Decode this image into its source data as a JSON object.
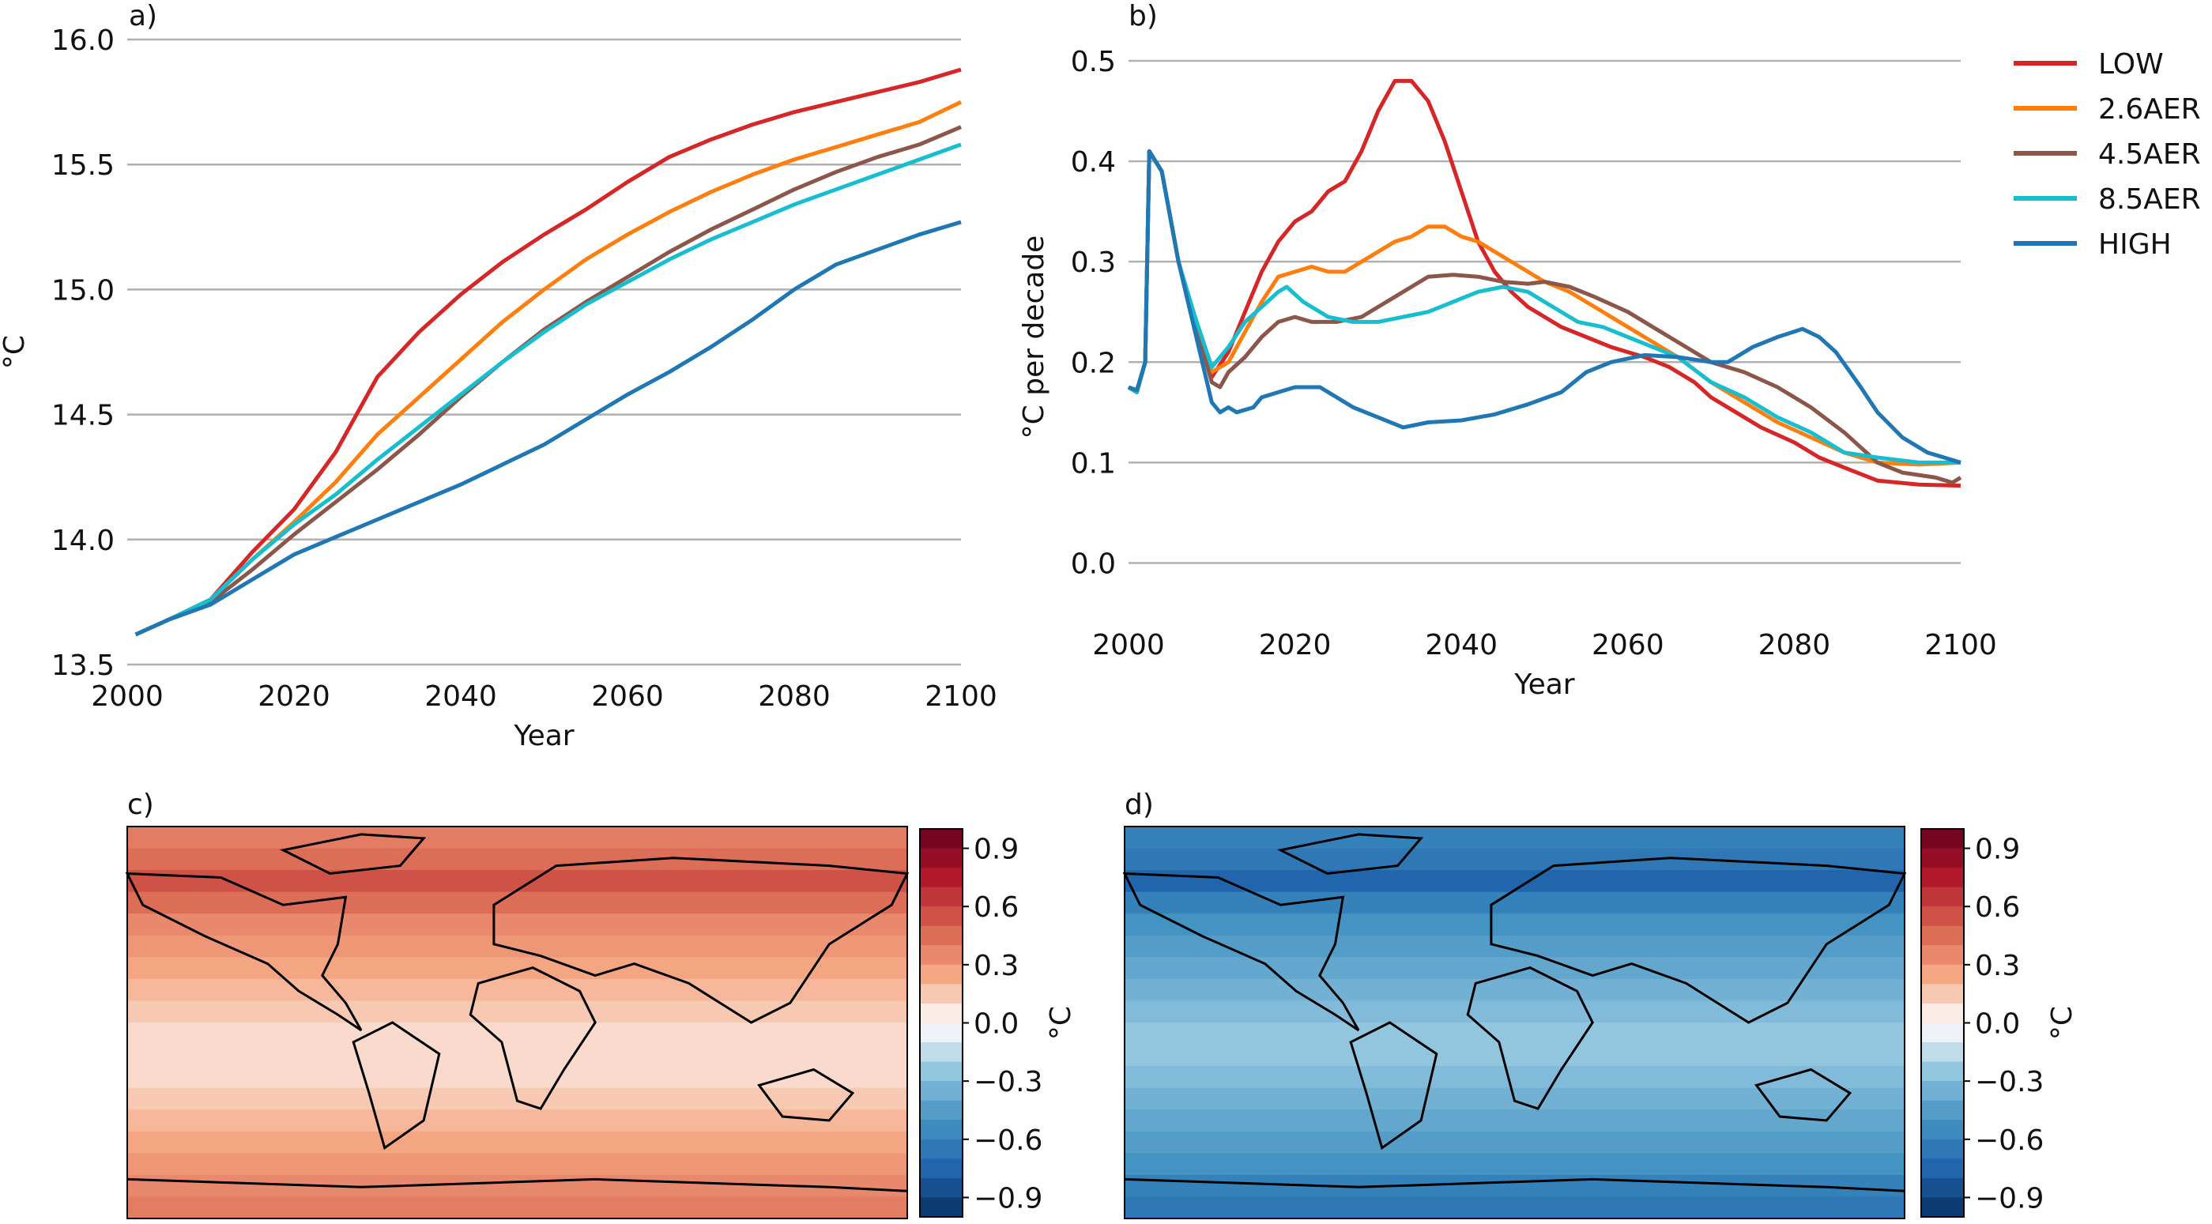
{
  "chart_data": [
    {
      "type": "line",
      "panel_label": "a)",
      "xlabel": "Year",
      "ylabel": "°C",
      "xlim": [
        2000,
        2100
      ],
      "ylim": [
        13.5,
        16.0
      ],
      "xticks": [
        "2000",
        "2020",
        "2040",
        "2060",
        "2080",
        "2100"
      ],
      "yticks": [
        "13.5",
        "14.0",
        "14.5",
        "15.0",
        "15.5",
        "16.0"
      ],
      "grid": "horizontal",
      "x": [
        2001,
        2005,
        2010,
        2015,
        2020,
        2025,
        2030,
        2035,
        2040,
        2045,
        2050,
        2055,
        2060,
        2065,
        2070,
        2075,
        2080,
        2085,
        2090,
        2095,
        2100
      ],
      "series": [
        {
          "name": "LOW",
          "color": "#d62728",
          "values": [
            13.62,
            13.68,
            13.76,
            13.95,
            14.12,
            14.35,
            14.65,
            14.83,
            14.98,
            15.11,
            15.22,
            15.32,
            15.43,
            15.53,
            15.6,
            15.66,
            15.71,
            15.75,
            15.79,
            15.83,
            15.88
          ]
        },
        {
          "name": "2.6AER",
          "color": "#ff7f0e",
          "values": [
            13.62,
            13.68,
            13.76,
            13.92,
            14.07,
            14.23,
            14.42,
            14.57,
            14.72,
            14.87,
            15.0,
            15.12,
            15.22,
            15.31,
            15.39,
            15.46,
            15.52,
            15.57,
            15.62,
            15.67,
            15.75
          ]
        },
        {
          "name": "4.5AER",
          "color": "#8c564b",
          "values": [
            13.62,
            13.68,
            13.75,
            13.88,
            14.02,
            14.15,
            14.28,
            14.42,
            14.57,
            14.71,
            14.84,
            14.95,
            15.05,
            15.15,
            15.24,
            15.32,
            15.4,
            15.47,
            15.53,
            15.58,
            15.65
          ]
        },
        {
          "name": "8.5AER",
          "color": "#17becf",
          "values": [
            13.62,
            13.68,
            13.76,
            13.92,
            14.06,
            14.18,
            14.32,
            14.45,
            14.58,
            14.71,
            14.83,
            14.94,
            15.03,
            15.12,
            15.2,
            15.27,
            15.34,
            15.4,
            15.46,
            15.52,
            15.58
          ]
        },
        {
          "name": "HIGH",
          "color": "#1f77b4",
          "values": [
            13.62,
            13.68,
            13.74,
            13.84,
            13.94,
            14.01,
            14.08,
            14.15,
            14.22,
            14.3,
            14.38,
            14.48,
            14.58,
            14.67,
            14.77,
            14.88,
            15.0,
            15.1,
            15.16,
            15.22,
            15.27
          ]
        }
      ]
    },
    {
      "type": "line",
      "panel_label": "b)",
      "xlabel": "Year",
      "ylabel": "°C per decade",
      "xlim": [
        2000,
        2100
      ],
      "ylim": [
        -0.05,
        0.5
      ],
      "xticks": [
        "2000",
        "2020",
        "2040",
        "2060",
        "2080",
        "2100"
      ],
      "yticks": [
        "0.0",
        "0.1",
        "0.2",
        "0.3",
        "0.4",
        "0.5"
      ],
      "grid": "horizontal",
      "legend": "right",
      "series": [
        {
          "name": "LOW",
          "color": "#d62728",
          "points": [
            [
              2000,
              0.175
            ],
            [
              2001,
              0.17
            ],
            [
              2002,
              0.2
            ],
            [
              2002.5,
              0.41
            ],
            [
              2004,
              0.39
            ],
            [
              2006,
              0.3
            ],
            [
              2008,
              0.24
            ],
            [
              2010,
              0.185
            ],
            [
              2012,
              0.21
            ],
            [
              2014,
              0.25
            ],
            [
              2016,
              0.29
            ],
            [
              2018,
              0.32
            ],
            [
              2020,
              0.34
            ],
            [
              2022,
              0.35
            ],
            [
              2024,
              0.37
            ],
            [
              2026,
              0.38
            ],
            [
              2028,
              0.41
            ],
            [
              2030,
              0.45
            ],
            [
              2032,
              0.48
            ],
            [
              2034,
              0.48
            ],
            [
              2036,
              0.46
            ],
            [
              2038,
              0.42
            ],
            [
              2040,
              0.37
            ],
            [
              2042,
              0.32
            ],
            [
              2044,
              0.29
            ],
            [
              2046,
              0.27
            ],
            [
              2048,
              0.255
            ],
            [
              2050,
              0.245
            ],
            [
              2052,
              0.235
            ],
            [
              2055,
              0.225
            ],
            [
              2058,
              0.215
            ],
            [
              2060,
              0.21
            ],
            [
              2062,
              0.205
            ],
            [
              2065,
              0.195
            ],
            [
              2068,
              0.18
            ],
            [
              2070,
              0.165
            ],
            [
              2073,
              0.15
            ],
            [
              2076,
              0.135
            ],
            [
              2080,
              0.12
            ],
            [
              2083,
              0.105
            ],
            [
              2086,
              0.095
            ],
            [
              2090,
              0.082
            ],
            [
              2095,
              0.078
            ],
            [
              2100,
              0.077
            ]
          ]
        },
        {
          "name": "2.6AER",
          "color": "#ff7f0e",
          "points": [
            [
              2000,
              0.175
            ],
            [
              2001,
              0.17
            ],
            [
              2002,
              0.2
            ],
            [
              2002.5,
              0.41
            ],
            [
              2004,
              0.39
            ],
            [
              2006,
              0.3
            ],
            [
              2008,
              0.24
            ],
            [
              2010,
              0.19
            ],
            [
              2012,
              0.2
            ],
            [
              2014,
              0.23
            ],
            [
              2016,
              0.26
            ],
            [
              2018,
              0.285
            ],
            [
              2020,
              0.29
            ],
            [
              2022,
              0.295
            ],
            [
              2024,
              0.29
            ],
            [
              2026,
              0.29
            ],
            [
              2028,
              0.3
            ],
            [
              2030,
              0.31
            ],
            [
              2032,
              0.32
            ],
            [
              2034,
              0.325
            ],
            [
              2036,
              0.335
            ],
            [
              2038,
              0.335
            ],
            [
              2040,
              0.325
            ],
            [
              2042,
              0.32
            ],
            [
              2045,
              0.305
            ],
            [
              2048,
              0.29
            ],
            [
              2050,
              0.28
            ],
            [
              2053,
              0.27
            ],
            [
              2056,
              0.255
            ],
            [
              2060,
              0.235
            ],
            [
              2063,
              0.22
            ],
            [
              2066,
              0.205
            ],
            [
              2070,
              0.18
            ],
            [
              2074,
              0.16
            ],
            [
              2078,
              0.14
            ],
            [
              2082,
              0.125
            ],
            [
              2086,
              0.11
            ],
            [
              2090,
              0.1
            ],
            [
              2095,
              0.098
            ],
            [
              2100,
              0.1
            ]
          ]
        },
        {
          "name": "4.5AER",
          "color": "#8c564b",
          "points": [
            [
              2000,
              0.175
            ],
            [
              2001,
              0.17
            ],
            [
              2002,
              0.2
            ],
            [
              2002.5,
              0.41
            ],
            [
              2004,
              0.39
            ],
            [
              2006,
              0.3
            ],
            [
              2008,
              0.24
            ],
            [
              2010,
              0.18
            ],
            [
              2011,
              0.175
            ],
            [
              2012,
              0.19
            ],
            [
              2014,
              0.205
            ],
            [
              2016,
              0.225
            ],
            [
              2018,
              0.24
            ],
            [
              2020,
              0.245
            ],
            [
              2022,
              0.24
            ],
            [
              2025,
              0.24
            ],
            [
              2028,
              0.245
            ],
            [
              2030,
              0.255
            ],
            [
              2032,
              0.265
            ],
            [
              2034,
              0.275
            ],
            [
              2036,
              0.285
            ],
            [
              2039,
              0.287
            ],
            [
              2042,
              0.285
            ],
            [
              2045,
              0.28
            ],
            [
              2048,
              0.278
            ],
            [
              2050,
              0.28
            ],
            [
              2053,
              0.275
            ],
            [
              2056,
              0.265
            ],
            [
              2060,
              0.25
            ],
            [
              2063,
              0.235
            ],
            [
              2066,
              0.22
            ],
            [
              2070,
              0.2
            ],
            [
              2074,
              0.19
            ],
            [
              2078,
              0.175
            ],
            [
              2082,
              0.155
            ],
            [
              2086,
              0.13
            ],
            [
              2090,
              0.1
            ],
            [
              2093,
              0.09
            ],
            [
              2097,
              0.085
            ],
            [
              2099,
              0.08
            ],
            [
              2100,
              0.085
            ]
          ]
        },
        {
          "name": "8.5AER",
          "color": "#17becf",
          "points": [
            [
              2000,
              0.175
            ],
            [
              2001,
              0.17
            ],
            [
              2002,
              0.2
            ],
            [
              2002.5,
              0.41
            ],
            [
              2004,
              0.39
            ],
            [
              2006,
              0.3
            ],
            [
              2008,
              0.245
            ],
            [
              2010,
              0.195
            ],
            [
              2012,
              0.215
            ],
            [
              2014,
              0.24
            ],
            [
              2016,
              0.255
            ],
            [
              2018,
              0.27
            ],
            [
              2019,
              0.275
            ],
            [
              2021,
              0.26
            ],
            [
              2024,
              0.245
            ],
            [
              2027,
              0.24
            ],
            [
              2030,
              0.24
            ],
            [
              2033,
              0.245
            ],
            [
              2036,
              0.25
            ],
            [
              2039,
              0.26
            ],
            [
              2042,
              0.27
            ],
            [
              2045,
              0.275
            ],
            [
              2048,
              0.27
            ],
            [
              2051,
              0.255
            ],
            [
              2054,
              0.24
            ],
            [
              2057,
              0.235
            ],
            [
              2060,
              0.225
            ],
            [
              2063,
              0.215
            ],
            [
              2066,
              0.205
            ],
            [
              2070,
              0.18
            ],
            [
              2074,
              0.165
            ],
            [
              2078,
              0.145
            ],
            [
              2082,
              0.13
            ],
            [
              2086,
              0.11
            ],
            [
              2090,
              0.105
            ],
            [
              2095,
              0.1
            ],
            [
              2100,
              0.1
            ]
          ]
        },
        {
          "name": "HIGH",
          "color": "#1f77b4",
          "points": [
            [
              2000,
              0.175
            ],
            [
              2001,
              0.172
            ],
            [
              2002,
              0.2
            ],
            [
              2002.5,
              0.41
            ],
            [
              2004,
              0.39
            ],
            [
              2006,
              0.3
            ],
            [
              2008,
              0.23
            ],
            [
              2010,
              0.16
            ],
            [
              2011,
              0.15
            ],
            [
              2012,
              0.155
            ],
            [
              2013,
              0.15
            ],
            [
              2015,
              0.155
            ],
            [
              2016,
              0.165
            ],
            [
              2018,
              0.17
            ],
            [
              2020,
              0.175
            ],
            [
              2023,
              0.175
            ],
            [
              2025,
              0.165
            ],
            [
              2027,
              0.155
            ],
            [
              2030,
              0.145
            ],
            [
              2033,
              0.135
            ],
            [
              2036,
              0.14
            ],
            [
              2040,
              0.142
            ],
            [
              2044,
              0.148
            ],
            [
              2048,
              0.158
            ],
            [
              2052,
              0.17
            ],
            [
              2055,
              0.19
            ],
            [
              2058,
              0.2
            ],
            [
              2062,
              0.207
            ],
            [
              2066,
              0.205
            ],
            [
              2070,
              0.2
            ],
            [
              2072,
              0.2
            ],
            [
              2075,
              0.215
            ],
            [
              2078,
              0.225
            ],
            [
              2081,
              0.233
            ],
            [
              2083,
              0.225
            ],
            [
              2085,
              0.21
            ],
            [
              2088,
              0.175
            ],
            [
              2090,
              0.15
            ],
            [
              2093,
              0.125
            ],
            [
              2096,
              0.11
            ],
            [
              2100,
              0.1
            ]
          ]
        }
      ]
    },
    {
      "type": "heatmap",
      "panel_label": "c)",
      "colorbar_label": "°C",
      "colorbar_ticks": [
        "0.9",
        "0.6",
        "0.3",
        "0.0",
        "−0.3",
        "−0.6",
        "−0.9"
      ],
      "colorbar_range": [
        -1.0,
        1.0
      ],
      "zonal_values": [
        0.4,
        0.45,
        0.55,
        0.45,
        0.35,
        0.3,
        0.25,
        0.2,
        0.15,
        0.1,
        0.1,
        0.1,
        0.15,
        0.2,
        0.25,
        0.3,
        0.35,
        0.4
      ]
    },
    {
      "type": "heatmap",
      "panel_label": "d)",
      "colorbar_label": "°C",
      "colorbar_ticks": [
        "0.9",
        "0.6",
        "0.3",
        "0.0",
        "−0.3",
        "−0.6",
        "−0.9"
      ],
      "colorbar_range": [
        -1.0,
        1.0
      ],
      "zonal_values": [
        -0.6,
        -0.65,
        -0.75,
        -0.6,
        -0.5,
        -0.45,
        -0.4,
        -0.35,
        -0.3,
        -0.25,
        -0.25,
        -0.3,
        -0.35,
        -0.4,
        -0.45,
        -0.5,
        -0.6,
        -0.65
      ]
    }
  ]
}
